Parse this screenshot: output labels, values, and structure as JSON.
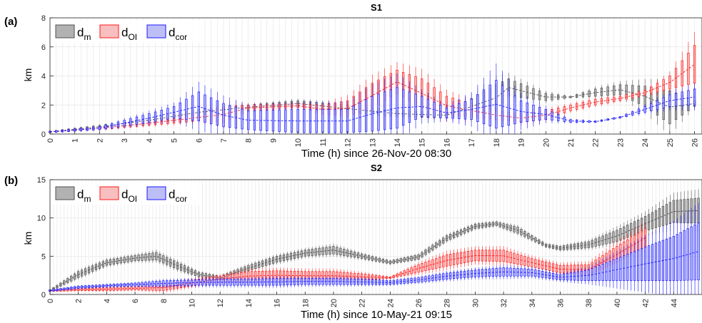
{
  "figure": {
    "panels": [
      {
        "label": "(a)",
        "title": "S1",
        "ylabel": "km",
        "xlabel": "Time (h) since 26-Nov-20 08:30",
        "legend": [
          {
            "base": "d",
            "sub": "m",
            "color": "#505050",
            "fill": "#aaaaaa"
          },
          {
            "base": "d",
            "sub": "OI",
            "color": "#ff1a1a",
            "fill": "#f6b8b8"
          },
          {
            "base": "d",
            "sub": "cor",
            "color": "#1a1aff",
            "fill": "#b7b7f6"
          }
        ]
      },
      {
        "label": "(b)",
        "title": "S2",
        "ylabel": "km",
        "xlabel": "Time (h) since 10-May-21 09:15",
        "legend": [
          {
            "base": "d",
            "sub": "m",
            "color": "#505050",
            "fill": "#aaaaaa"
          },
          {
            "base": "d",
            "sub": "OI",
            "color": "#ff1a1a",
            "fill": "#f6b8b8"
          },
          {
            "base": "d",
            "sub": "cor",
            "color": "#1a1aff",
            "fill": "#b7b7f6"
          }
        ]
      }
    ]
  },
  "chart_data": [
    {
      "type": "box",
      "title": "S1",
      "xlabel": "Time (h) since 26-Nov-20 08:30",
      "ylabel": "km",
      "xlim": [
        0,
        26.3
      ],
      "ylim": [
        0,
        8
      ],
      "xticks": [
        0,
        1,
        2,
        3,
        4,
        5,
        6,
        7,
        8,
        9,
        10,
        11,
        12,
        13,
        14,
        15,
        16,
        17,
        18,
        19,
        20,
        21,
        22,
        23,
        24,
        25,
        26
      ],
      "yticks": [
        0,
        2,
        4,
        6,
        8
      ],
      "grid": true,
      "legend_position": "top-left",
      "series": [
        {
          "name": "d_m",
          "color": "#505050",
          "fill": "#aaaaaa",
          "x": [
            0,
            2,
            4,
            6,
            8,
            10,
            12,
            14,
            16,
            18,
            18.5,
            20,
            21,
            22,
            23,
            24,
            25,
            26
          ],
          "q1": [
            0.1,
            0.4,
            0.8,
            1.3,
            1.7,
            1.9,
            1.5,
            1.2,
            1.1,
            1.6,
            2.6,
            2.3,
            2.5,
            2.6,
            2.7,
            1.9,
            0.7,
            1.9
          ],
          "q3": [
            0.2,
            0.6,
            1.1,
            1.7,
            2.0,
            2.3,
            2.0,
            1.6,
            1.5,
            3.4,
            3.8,
            2.8,
            2.6,
            3.1,
            3.4,
            3.3,
            3.0,
            2.3
          ]
        },
        {
          "name": "d_OI",
          "color": "#ff1a1a",
          "fill": "#f6b8b8",
          "x": [
            0,
            2,
            4,
            6,
            7,
            8,
            10,
            11,
            12,
            13,
            14,
            15,
            16,
            18,
            19,
            20,
            21,
            22,
            23,
            24,
            25,
            26
          ],
          "q1": [
            0.1,
            0.3,
            0.6,
            0.9,
            0.8,
            1.6,
            1.8,
            1.4,
            1.2,
            1.8,
            2.8,
            1.8,
            1.3,
            1.0,
            0.8,
            1.0,
            1.6,
            2.0,
            2.3,
            2.7,
            3.1,
            3.5
          ],
          "q3": [
            0.2,
            0.5,
            0.9,
            1.4,
            1.9,
            2.0,
            2.1,
            2.0,
            2.3,
            3.5,
            4.4,
            3.8,
            2.6,
            1.6,
            1.4,
            1.6,
            2.0,
            2.4,
            2.6,
            3.0,
            4.0,
            6.1
          ]
        },
        {
          "name": "d_cor",
          "color": "#1a1aff",
          "fill": "#b7b7f6",
          "x": [
            0,
            2,
            4,
            5,
            6,
            7,
            8,
            10,
            12,
            13,
            14,
            15,
            16,
            17,
            18,
            19,
            20,
            21,
            22,
            23,
            24,
            25,
            26
          ],
          "q1": [
            0.1,
            0.3,
            0.8,
            1.1,
            0.9,
            0.5,
            0.3,
            0.1,
            0.1,
            0.2,
            0.4,
            1.2,
            1.1,
            1.0,
            0.4,
            0.8,
            1.0,
            0.8,
            0.8,
            1.1,
            1.5,
            1.9,
            2.0
          ],
          "q3": [
            0.2,
            0.5,
            1.4,
            1.9,
            2.9,
            2.1,
            1.6,
            1.7,
            1.7,
            2.6,
            3.2,
            2.6,
            1.8,
            2.4,
            3.7,
            2.3,
            1.7,
            1.0,
            0.9,
            1.2,
            1.9,
            2.7,
            3.1
          ]
        }
      ]
    },
    {
      "type": "box",
      "title": "S2",
      "xlabel": "Time (h) since 10-May-21 09:15",
      "ylabel": "km",
      "xlim": [
        0,
        46
      ],
      "ylim": [
        0,
        15
      ],
      "xticks": [
        0,
        2,
        4,
        6,
        8,
        10,
        12,
        14,
        16,
        18,
        20,
        22,
        24,
        26,
        28,
        30,
        32,
        34,
        36,
        38,
        40,
        42,
        44
      ],
      "yticks": [
        0,
        5,
        10,
        15
      ],
      "grid": true,
      "legend_position": "top-left",
      "series": [
        {
          "name": "d_m",
          "color": "#505050",
          "fill": "#aaaaaa",
          "x": [
            0,
            2,
            4,
            6,
            7.5,
            9,
            10.5,
            12,
            14,
            16,
            18,
            20,
            22,
            24,
            26,
            28,
            30,
            31.5,
            33,
            35,
            36,
            38,
            40,
            42,
            44,
            45.8
          ],
          "q1": [
            0.4,
            2.2,
            3.8,
            4.4,
            4.5,
            3.3,
            2.3,
            1.9,
            3.1,
            4.2,
            5.0,
            5.3,
            4.7,
            4.0,
            4.6,
            7.0,
            8.6,
            9.0,
            8.0,
            6.2,
            5.8,
            6.1,
            6.9,
            8.3,
            9.4,
            9.3
          ],
          "q3": [
            0.6,
            3.0,
            4.5,
            5.1,
            5.5,
            4.2,
            2.9,
            2.4,
            3.8,
            5.0,
            5.8,
            6.3,
            5.3,
            4.4,
            5.2,
            7.7,
            9.2,
            9.5,
            8.8,
            6.6,
            6.3,
            6.9,
            8.4,
            10.2,
            12.3,
            12.6
          ]
        },
        {
          "name": "d_OI",
          "color": "#ff1a1a",
          "fill": "#f6b8b8",
          "x": [
            0,
            2,
            4,
            6,
            8,
            10,
            12,
            14,
            16,
            18,
            20,
            22,
            24,
            26,
            28,
            30,
            32,
            34,
            36,
            38,
            40,
            42
          ],
          "q1": [
            0.4,
            0.5,
            0.5,
            0.6,
            0.5,
            1.1,
            1.6,
            1.8,
            1.9,
            1.9,
            1.9,
            1.9,
            2.1,
            2.9,
            3.7,
            4.4,
            4.3,
            3.6,
            2.8,
            2.6,
            4.2,
            6.2
          ],
          "q3": [
            0.6,
            0.8,
            0.9,
            1.0,
            1.3,
            1.9,
            2.4,
            3.0,
            3.1,
            3.0,
            3.0,
            2.7,
            2.3,
            3.9,
            5.2,
            5.8,
            5.8,
            4.7,
            3.8,
            3.9,
            6.3,
            8.6
          ]
        },
        {
          "name": "d_cor",
          "color": "#1a1aff",
          "fill": "#b7b7f6",
          "x": [
            0,
            2,
            4,
            6,
            8,
            10,
            12,
            14,
            16,
            18,
            20,
            22,
            24,
            26,
            28,
            30,
            32,
            34,
            36,
            38,
            40,
            42,
            44,
            45.8
          ],
          "q1": [
            0.4,
            0.8,
            1.0,
            1.1,
            1.1,
            1.2,
            1.2,
            1.2,
            1.2,
            1.3,
            1.3,
            1.3,
            1.3,
            1.6,
            2.0,
            2.3,
            2.4,
            2.4,
            1.9,
            1.8,
            1.8,
            1.8,
            1.8,
            1.9
          ],
          "q3": [
            0.6,
            1.1,
            1.3,
            1.5,
            1.8,
            1.9,
            2.0,
            2.0,
            2.1,
            2.1,
            2.1,
            2.0,
            1.8,
            2.2,
            2.8,
            3.2,
            3.5,
            3.3,
            2.6,
            3.2,
            4.7,
            6.2,
            7.6,
            9.4
          ]
        }
      ]
    }
  ]
}
